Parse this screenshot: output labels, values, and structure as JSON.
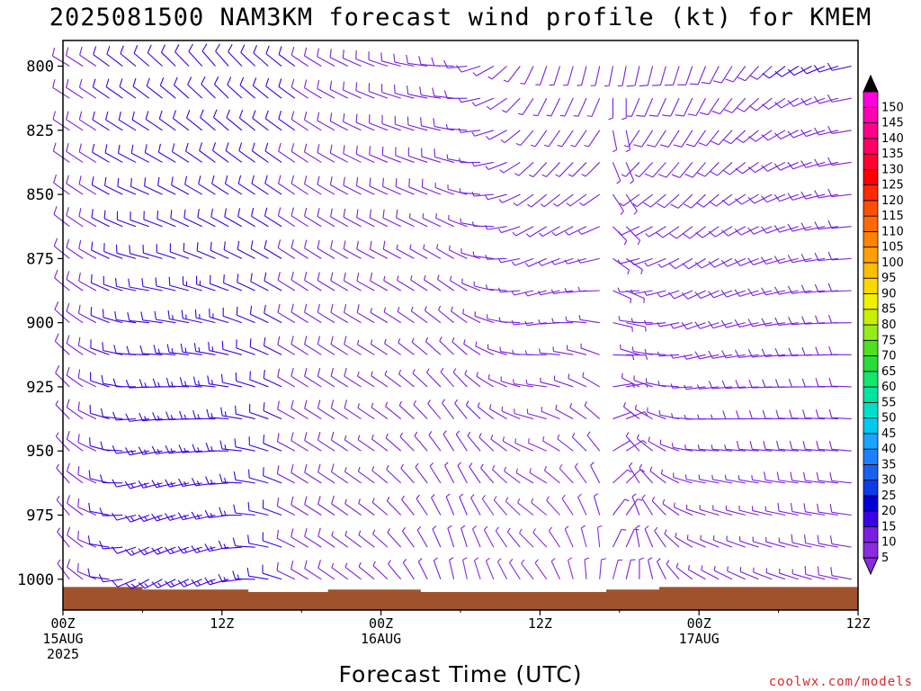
{
  "chart_data": {
    "type": "wind_barb_time_height",
    "title": "2025081500 NAM3KM forecast wind profile (kt) for KMEM",
    "xlabel": "Forecast Time (UTC)",
    "credit": "coolwx.com/models",
    "y_axis": {
      "ticks": [
        "800",
        "825",
        "850",
        "875",
        "900",
        "925",
        "950",
        "975",
        "1000"
      ],
      "range": [
        790,
        1012
      ],
      "scale": "pressure (inverted)"
    },
    "x_axis": {
      "range_hours": [
        0,
        60
      ],
      "ticks": [
        {
          "hour": 0,
          "lines": [
            "00Z",
            "15AUG",
            "2025"
          ]
        },
        {
          "hour": 12,
          "lines": [
            "12Z"
          ]
        },
        {
          "hour": 24,
          "lines": [
            "00Z",
            "16AUG"
          ]
        },
        {
          "hour": 36,
          "lines": [
            "12Z"
          ]
        },
        {
          "hour": 48,
          "lines": [
            "00Z",
            "17AUG"
          ]
        },
        {
          "hour": 60,
          "lines": [
            "12Z"
          ]
        }
      ]
    },
    "colorbar": {
      "labels": [
        "5",
        "10",
        "15",
        "20",
        "25",
        "30",
        "35",
        "40",
        "45",
        "50",
        "55",
        "60",
        "65",
        "70",
        "75",
        "80",
        "85",
        "90",
        "95",
        "100",
        "105",
        "110",
        "115",
        "120",
        "125",
        "130",
        "135",
        "140",
        "145",
        "150"
      ],
      "colors": [
        "#8a2be2",
        "#7a1fe0",
        "#3b00e6",
        "#0000d6",
        "#0c3ce8",
        "#1a60f0",
        "#1f7fff",
        "#1aa4ff",
        "#00c8f0",
        "#00e0c8",
        "#00e6a0",
        "#14e66e",
        "#28dc3c",
        "#50e020",
        "#96ec18",
        "#c8f000",
        "#f0f000",
        "#ffd700",
        "#ffbe00",
        "#ffa000",
        "#ff8200",
        "#ff6a00",
        "#ff5000",
        "#ff2a00",
        "#ff0000",
        "#ff0030",
        "#ff0064",
        "#ff008c",
        "#ff00b4",
        "#ff00dc"
      ],
      "top_arrow_color": "#000000"
    },
    "wind": {
      "speed_unit": "kt",
      "pressure_levels": [
        800,
        812.5,
        825,
        837.5,
        850,
        862.5,
        875,
        887.5,
        900,
        912.5,
        925,
        937.5,
        950,
        962.5,
        975,
        987.5,
        1000
      ],
      "regime_hours": [
        0,
        6,
        12,
        18,
        24,
        30,
        36,
        42,
        48,
        54,
        60
      ],
      "regime_dir_upper": [
        300,
        310,
        320,
        305,
        290,
        270,
        200,
        190,
        200,
        230,
        260
      ],
      "regime_dir_lower": [
        330,
        240,
        250,
        300,
        310,
        350,
        320,
        20,
        300,
        290,
        280
      ],
      "regime_speed_upper": [
        9,
        11,
        11,
        10,
        9,
        8,
        6,
        7,
        9,
        10,
        10
      ],
      "regime_speed_lower": [
        6,
        13,
        15,
        9,
        6,
        5,
        4,
        5,
        6,
        7,
        8
      ],
      "time_step_hours": 1
    },
    "terrain": {
      "color": "#a0522d",
      "hours": [
        0,
        4,
        6,
        9,
        14,
        18,
        20,
        23,
        27,
        30,
        36,
        41,
        45,
        50,
        54,
        60
      ],
      "surface_pressure": [
        1003,
        1003,
        1004,
        1004,
        1005,
        1005,
        1004,
        1004,
        1005,
        1005,
        1005,
        1004,
        1003,
        1003,
        1003,
        1002
      ]
    }
  }
}
